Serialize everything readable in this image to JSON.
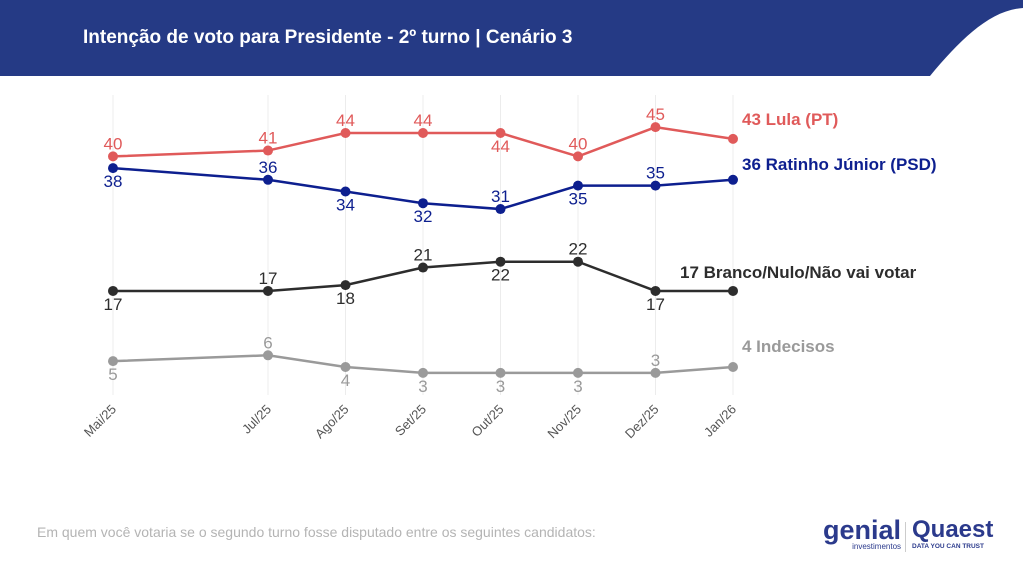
{
  "header": {
    "title": "Intenção de voto para Presidente - 2º turno | Cenário 3",
    "color": "#253a85"
  },
  "footnote": "Em quem você votaria se o segundo turno fosse disputado entre os seguintes candidatos:",
  "logos": {
    "genial": "genial",
    "genial_sub": "investimentos",
    "quaest": "Quaest",
    "quaest_sub": "DATA YOU CAN TRUST"
  },
  "chart_data": {
    "type": "line",
    "categories": [
      "Mai/25",
      "Jul/25",
      "Ago/25",
      "Set/25",
      "Out/25",
      "Nov/25",
      "Dez/25",
      "Jan/26"
    ],
    "month_index": [
      0,
      2,
      3,
      4,
      5,
      6,
      7,
      8
    ],
    "grid": "vertical",
    "series": [
      {
        "name": "Lula (PT)",
        "end_label": "43 Lula (PT)",
        "color": "#e05a5a",
        "values": [
          40,
          41,
          44,
          44,
          44,
          40,
          45,
          43
        ]
      },
      {
        "name": "Ratinho Júnior (PSD)",
        "end_label": "36 Ratinho Júnior (PSD)",
        "color": "#0d1f8f",
        "values": [
          38,
          36,
          34,
          32,
          31,
          35,
          35,
          36
        ]
      },
      {
        "name": "Branco/Nulo/Não vai votar",
        "end_label": "17 Branco/Nulo/Não vai votar",
        "color": "#2d2d2d",
        "values": [
          17,
          17,
          18,
          21,
          22,
          22,
          17,
          17
        ]
      },
      {
        "name": "Indecisos",
        "end_label": "4 Indecisos",
        "color": "#9a9a9a",
        "values": [
          5,
          6,
          4,
          3,
          3,
          3,
          3,
          4
        ]
      }
    ]
  }
}
